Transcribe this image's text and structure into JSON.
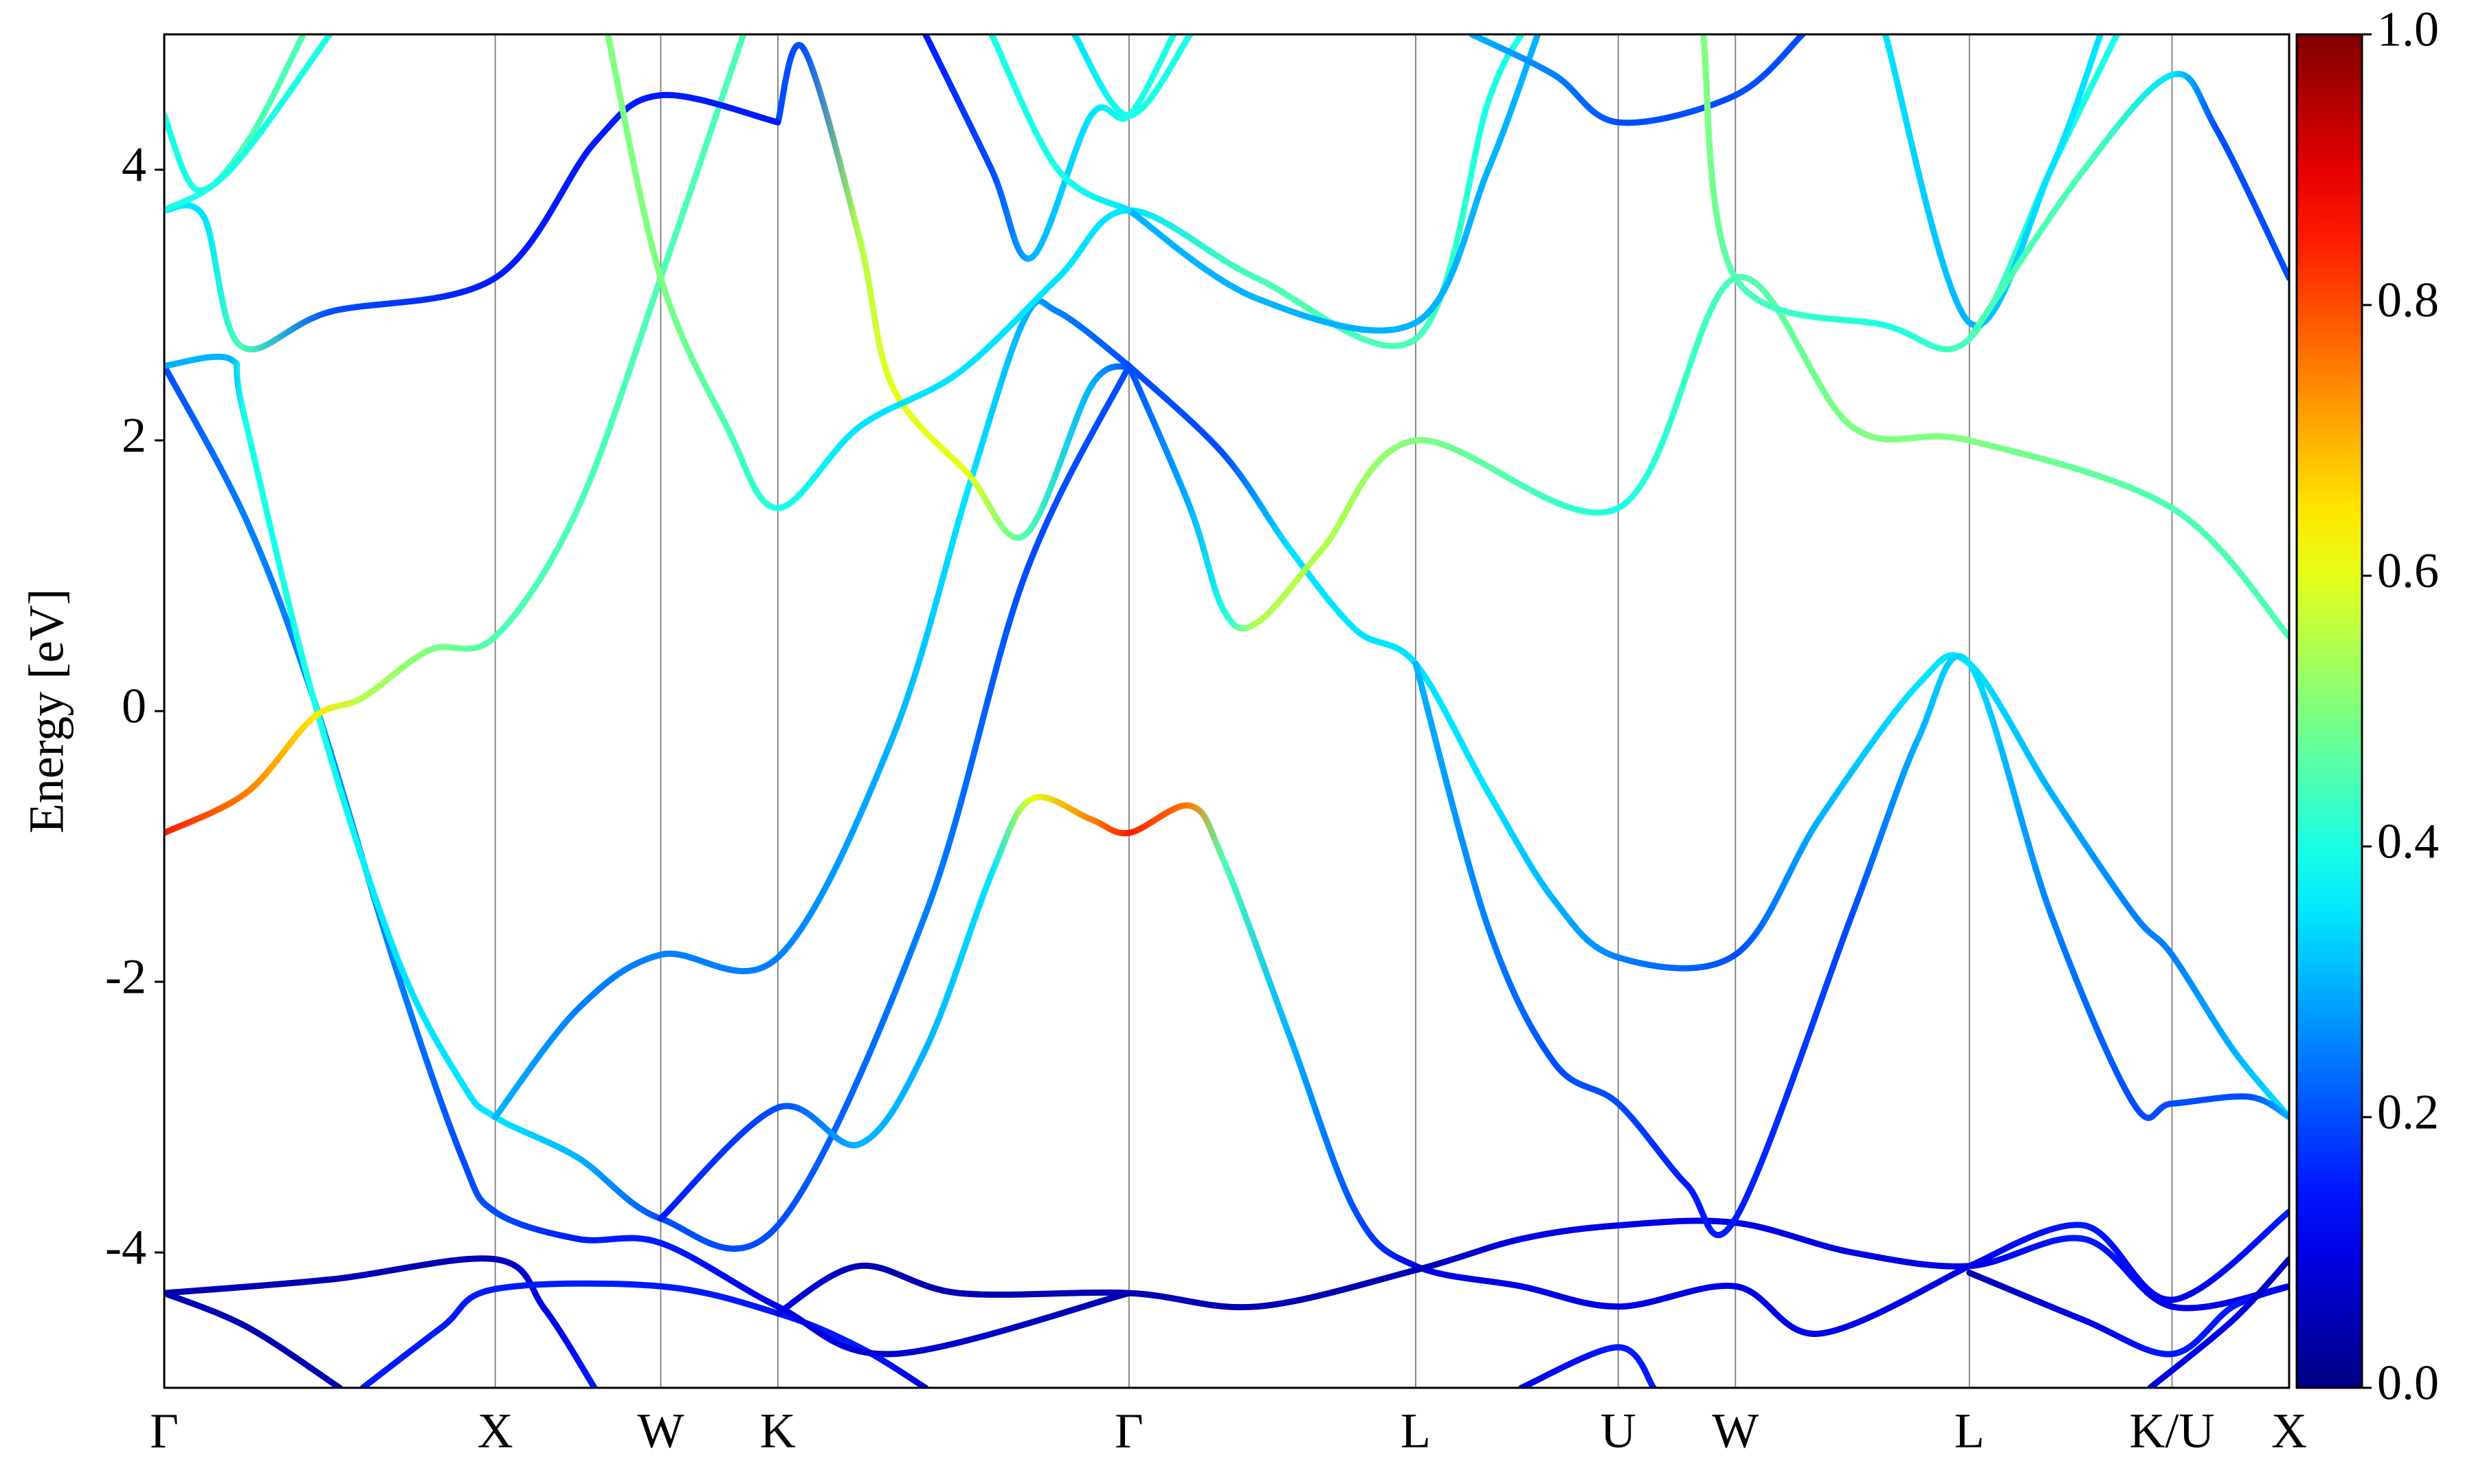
{
  "chart_data": {
    "type": "fatband",
    "ylabel": "Energy [eV]",
    "xlim": [
      0,
      6.42
    ],
    "ylim": [
      -5,
      5
    ],
    "xticks": [
      {
        "value": 0,
        "label": "Γ"
      },
      {
        "value": 1,
        "label": "X"
      },
      {
        "value": 1.5,
        "label": "W"
      },
      {
        "value": 1.854,
        "label": "K"
      },
      {
        "value": 2.915,
        "label": "Γ"
      },
      {
        "value": 3.781,
        "label": "L"
      },
      {
        "value": 4.393,
        "label": "U"
      },
      {
        "value": 4.747,
        "label": "W"
      },
      {
        "value": 5.454,
        "label": "L"
      },
      {
        "value": 6.066,
        "label": "K/U"
      },
      {
        "value": 6.42,
        "label": "X"
      }
    ],
    "yticks": [
      -4,
      -2,
      0,
      2,
      4
    ],
    "colormap": "jet",
    "clim": [
      0,
      1
    ],
    "cticks": [
      {
        "value": 0,
        "label": "0.0"
      },
      {
        "value": 0.2,
        "label": "0.2"
      },
      {
        "value": 0.4,
        "label": "0.4"
      },
      {
        "value": 0.6,
        "label": "0.6"
      },
      {
        "value": 0.8,
        "label": "0.8"
      },
      {
        "value": 1,
        "label": "1.0"
      }
    ],
    "series": [
      {
        "x": [
          0,
          0.5,
          1,
          1.15,
          1.3
        ],
        "values": [
          -4.3,
          -4.2,
          -4.05,
          -4.42,
          -5
        ],
        "weights": [
          0.05,
          0.05,
          0.05,
          0.1,
          0.15
        ]
      },
      {
        "x": [
          0,
          0.25,
          0.53
        ],
        "values": [
          -4.3,
          -4.55,
          -5
        ],
        "weights": [
          0.05,
          0.05,
          0.05
        ]
      },
      {
        "x": [
          0.6,
          0.84,
          1,
          1.5,
          1.854,
          2.1,
          2.3
        ],
        "values": [
          -5,
          -4.55,
          -4.27,
          -4.25,
          -4.45,
          -4.7,
          -5
        ],
        "weights": [
          0.15,
          0.15,
          0.15,
          0.15,
          0.15,
          0.15,
          0.1
        ]
      },
      {
        "x": [
          0,
          0.25,
          0.45,
          0.7,
          0.9,
          1,
          1.25,
          1.5,
          1.854,
          2.2,
          2.915
        ],
        "values": [
          2.55,
          1.4,
          0.1,
          -1.9,
          -3.3,
          -3.7,
          -3.9,
          -3.93,
          -4.4,
          -4.75,
          -4.3
        ],
        "weights": [
          0.2,
          0.25,
          0.25,
          0.25,
          0.2,
          0.2,
          0.15,
          0.15,
          0.1,
          0.08,
          0.05
        ]
      },
      {
        "x": [
          0,
          0.2,
          0.24,
          0.45,
          0.7,
          0.9,
          1,
          1.25,
          1.5,
          1.854,
          2.3,
          2.6,
          2.915
        ],
        "values": [
          2.55,
          2.6,
          2.2,
          0.1,
          -1.8,
          -2.75,
          -3.0,
          -3.3,
          -3.75,
          -3.8,
          -1.5,
          1.0,
          2.55
        ],
        "weights": [
          0.3,
          0.3,
          0.4,
          0.4,
          0.35,
          0.35,
          0.35,
          0.3,
          0.2,
          0.2,
          0.25,
          0.2,
          0.2
        ]
      },
      {
        "x": [
          1,
          1.25,
          1.5,
          1.854,
          2.2,
          2.43,
          2.6,
          2.7,
          2.915
        ],
        "values": [
          -3.0,
          -2.2,
          -1.8,
          -1.82,
          -0.2,
          1.65,
          2.9,
          2.95,
          2.55
        ],
        "weights": [
          0.3,
          0.25,
          0.25,
          0.25,
          0.3,
          0.35,
          0.3,
          0.25,
          0.2
        ]
      },
      {
        "x": [
          1.854,
          1.93,
          2.1,
          2.2,
          2.43,
          2.6,
          2.8,
          2.915
        ],
        "values": [
          4.35,
          4.9,
          3.5,
          2.4,
          1.75,
          1.3,
          2.4,
          2.55
        ],
        "weights": [
          0.2,
          0.2,
          0.55,
          0.6,
          0.6,
          0.45,
          0.3,
          0.2
        ]
      },
      {
        "x": [
          0,
          0.25,
          0.45,
          0.6,
          0.8,
          1,
          1.25,
          1.5,
          1.75
        ],
        "values": [
          -0.9,
          -0.6,
          -0.05,
          0.1,
          0.45,
          0.55,
          1.5,
          3.2,
          5.0
        ],
        "weights": [
          0.85,
          0.75,
          0.65,
          0.55,
          0.5,
          0.45,
          0.45,
          0.45,
          0.45
        ]
      },
      {
        "x": [
          0,
          0.12,
          0.23,
          0.5,
          1,
          1.3,
          1.5,
          1.854
        ],
        "values": [
          3.7,
          3.65,
          2.7,
          2.95,
          3.2,
          4.2,
          4.55,
          4.35
        ],
        "weights": [
          0.35,
          0.35,
          0.45,
          0.2,
          0.15,
          0.15,
          0.15,
          0.15
        ]
      },
      {
        "x": [
          0,
          0.1,
          0.25,
          0.42
        ],
        "values": [
          4.4,
          3.85,
          4.2,
          5.0
        ],
        "weights": [
          0.4,
          0.4,
          0.45,
          0.45
        ]
      },
      {
        "x": [
          0,
          0.2,
          0.5
        ],
        "values": [
          3.7,
          4.0,
          5.0
        ],
        "weights": [
          0.4,
          0.4,
          0.4
        ]
      },
      {
        "x": [
          1.34,
          1.5,
          1.7,
          1.854,
          2.1,
          2.4,
          2.7,
          2.915,
          3.3,
          3.781,
          4.0,
          4.1
        ],
        "values": [
          5.0,
          3.2,
          2.1,
          1.5,
          2.1,
          2.5,
          3.2,
          3.7,
          3.2,
          2.75,
          4.5,
          5
        ],
        "weights": [
          0.5,
          0.5,
          0.45,
          0.4,
          0.35,
          0.35,
          0.35,
          0.35,
          0.45,
          0.45,
          0.4,
          0.4
        ]
      },
      {
        "x": [
          2.915,
          3.3,
          3.781,
          4.0,
          4.15
        ],
        "values": [
          3.7,
          3.05,
          2.87,
          4.0,
          5
        ],
        "weights": [
          0.3,
          0.3,
          0.3,
          0.3,
          0.3
        ]
      },
      {
        "x": [
          2.3,
          2.5,
          2.62,
          2.8,
          2.915,
          3.05
        ],
        "values": [
          5.0,
          4.0,
          3.35,
          4.4,
          4.4,
          5
        ],
        "weights": [
          0.15,
          0.2,
          0.3,
          0.35,
          0.4,
          0.4
        ]
      },
      {
        "x": [
          2.5,
          2.7,
          2.915
        ],
        "values": [
          5,
          4.0,
          3.7
        ],
        "weights": [
          0.4,
          0.4,
          0.35
        ]
      },
      {
        "x": [
          2.75,
          2.915,
          3.1
        ],
        "values": [
          5,
          4.4,
          5
        ],
        "weights": [
          0.35,
          0.4,
          0.4
        ]
      },
      {
        "x": [
          1.5,
          1.854,
          2.1,
          2.3,
          2.5,
          2.62,
          2.8,
          2.915,
          3.1,
          3.2,
          3.4,
          3.6,
          3.781,
          4.1,
          4.393,
          4.747,
          5.0,
          5.454
        ],
        "values": [
          -3.75,
          -2.93,
          -3.2,
          -2.5,
          -1.2,
          -0.65,
          -0.8,
          -0.9,
          -0.7,
          -1.1,
          -2.4,
          -3.7,
          -4.1,
          -4.25,
          -4.4,
          -4.25,
          -4.6,
          -4.1
        ],
        "weights": [
          0.15,
          0.2,
          0.3,
          0.3,
          0.35,
          0.6,
          0.75,
          0.85,
          0.75,
          0.45,
          0.3,
          0.2,
          0.1,
          0.1,
          0.1,
          0.1,
          0.1,
          0.1
        ]
      },
      {
        "x": [
          1.854,
          2.1,
          2.4,
          2.915,
          3.3,
          3.781,
          4.1,
          4.393,
          4.747,
          5.1,
          5.454,
          5.8,
          6.066,
          6.42
        ],
        "values": [
          -4.45,
          -4.1,
          -4.3,
          -4.3,
          -4.4,
          -4.13,
          -3.9,
          -3.8,
          -3.78,
          -4.0,
          -4.1,
          -3.9,
          -4.4,
          -4.25
        ],
        "weights": [
          0.1,
          0.05,
          0.05,
          0.05,
          0.05,
          0.05,
          0.1,
          0.1,
          0.1,
          0.1,
          0.1,
          0.15,
          0.1,
          0.1
        ]
      },
      {
        "x": [
          2.915,
          3.2,
          3.4,
          3.6,
          3.781,
          4.0,
          4.2,
          4.393,
          4.747,
          5.0,
          5.3,
          5.454,
          5.7,
          5.95,
          6.066,
          6.25,
          6.42
        ],
        "values": [
          2.55,
          1.9,
          1.2,
          0.6,
          0.35,
          -0.6,
          -1.4,
          -1.82,
          -1.8,
          -0.8,
          0.2,
          0.35,
          -0.6,
          -1.5,
          -1.8,
          -2.5,
          -3.0
        ],
        "weights": [
          0.2,
          0.2,
          0.35,
          0.35,
          0.35,
          0.35,
          0.3,
          0.25,
          0.2,
          0.3,
          0.35,
          0.35,
          0.3,
          0.25,
          0.25,
          0.3,
          0.35
        ]
      },
      {
        "x": [
          2.915,
          3.1,
          3.2,
          3.3,
          3.5,
          3.781,
          4.393,
          4.747,
          5.1,
          5.454,
          6.066,
          6.42
        ],
        "values": [
          2.55,
          1.5,
          0.75,
          0.65,
          1.2,
          2.0,
          1.5,
          3.2,
          2.1,
          2.0,
          1.5,
          0.55
        ],
        "weights": [
          0.2,
          0.3,
          0.4,
          0.55,
          0.55,
          0.5,
          0.4,
          0.45,
          0.5,
          0.5,
          0.45,
          0.45
        ]
      },
      {
        "x": [
          3.781,
          4.0,
          4.2,
          4.393,
          4.6,
          4.747,
          5.1,
          5.3,
          5.454,
          5.7,
          5.95,
          6.066,
          6.3,
          6.42
        ],
        "values": [
          0.35,
          -1.6,
          -2.6,
          -2.9,
          -3.5,
          -3.75,
          -1.5,
          -0.2,
          0.35,
          -1.5,
          -2.9,
          -2.9,
          -2.85,
          -3.0
        ],
        "weights": [
          0.3,
          0.25,
          0.2,
          0.2,
          0.15,
          0.15,
          0.2,
          0.3,
          0.35,
          0.25,
          0.2,
          0.2,
          0.2,
          0.3
        ]
      },
      {
        "x": [
          3.95,
          4.2,
          4.393,
          4.747,
          4.95
        ],
        "values": [
          5,
          4.7,
          4.35,
          4.55,
          5
        ],
        "weights": [
          0.3,
          0.25,
          0.2,
          0.2,
          0.2
        ]
      },
      {
        "x": [
          4.65,
          4.747,
          5.2,
          5.454,
          5.7,
          5.9
        ],
        "values": [
          5,
          3.2,
          2.85,
          2.75,
          4.0,
          5
        ],
        "weights": [
          0.5,
          0.45,
          0.4,
          0.45,
          0.4,
          0.4
        ]
      },
      {
        "x": [
          5.2,
          5.454,
          5.7,
          5.85
        ],
        "values": [
          5,
          2.87,
          4.0,
          5
        ],
        "weights": [
          0.35,
          0.3,
          0.35,
          0.35
        ]
      },
      {
        "x": [
          5.454,
          5.8,
          6.066,
          6.2,
          6.42
        ],
        "values": [
          2.75,
          4.0,
          4.7,
          4.3,
          3.2
        ],
        "weights": [
          0.45,
          0.45,
          0.35,
          0.2,
          0.2
        ]
      },
      {
        "x": [
          5.454,
          5.8,
          6.066,
          6.42
        ],
        "values": [
          -4.1,
          -3.8,
          -4.35,
          -3.7
        ],
        "weights": [
          0.1,
          0.15,
          0.1,
          0.15
        ]
      },
      {
        "x": [
          5.454,
          5.8,
          6.066,
          6.25,
          6.42
        ],
        "values": [
          -4.15,
          -4.5,
          -4.75,
          -4.4,
          -4.25
        ],
        "weights": [
          0.05,
          0.1,
          0.15,
          0.15,
          0.1
        ]
      },
      {
        "x": [
          6.0,
          6.25,
          6.42
        ],
        "values": [
          -5,
          -4.5,
          -4.05
        ],
        "weights": [
          0.1,
          0.1,
          0.05
        ]
      },
      {
        "x": [
          4.1,
          4.393,
          4.5
        ],
        "values": [
          -5,
          -4.7,
          -5
        ],
        "weights": [
          0.1,
          0.15,
          0.15
        ]
      }
    ]
  }
}
